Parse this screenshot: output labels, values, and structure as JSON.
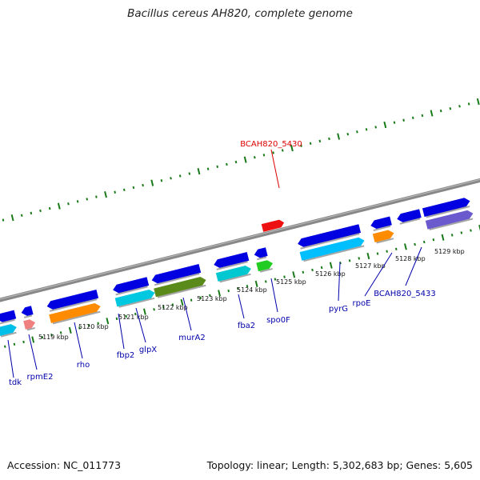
{
  "title": "Bacillus cereus AH820, complete genome",
  "footer": {
    "accession": "Accession: NC_011773",
    "stats": "Topology: linear; Length: 5,302,683 bp; Genes: 5,605"
  },
  "colors": {
    "label_blue": "#0000aa",
    "label_red": "#dd0000",
    "tick_green": "#1a7a1a",
    "backbone_gray": "#888888"
  },
  "scale": {
    "labels": [
      "5119 kbp",
      "5120 kbp",
      "5121 kbp",
      "5122 kbp",
      "5123 kbp",
      "5124 kbp",
      "5125 kbp",
      "5126 kbp",
      "5127 kbp",
      "5128 kbp",
      "5129 kbp"
    ]
  },
  "highlight": {
    "name": "BCAH820_5430"
  },
  "gene_labels": [
    "tdk",
    "rpmE2",
    "rho",
    "fbp2",
    "glpX",
    "murA2",
    "fba2",
    "spo0F",
    "pyrG",
    "rpoE",
    "BCAH820_5433"
  ]
}
